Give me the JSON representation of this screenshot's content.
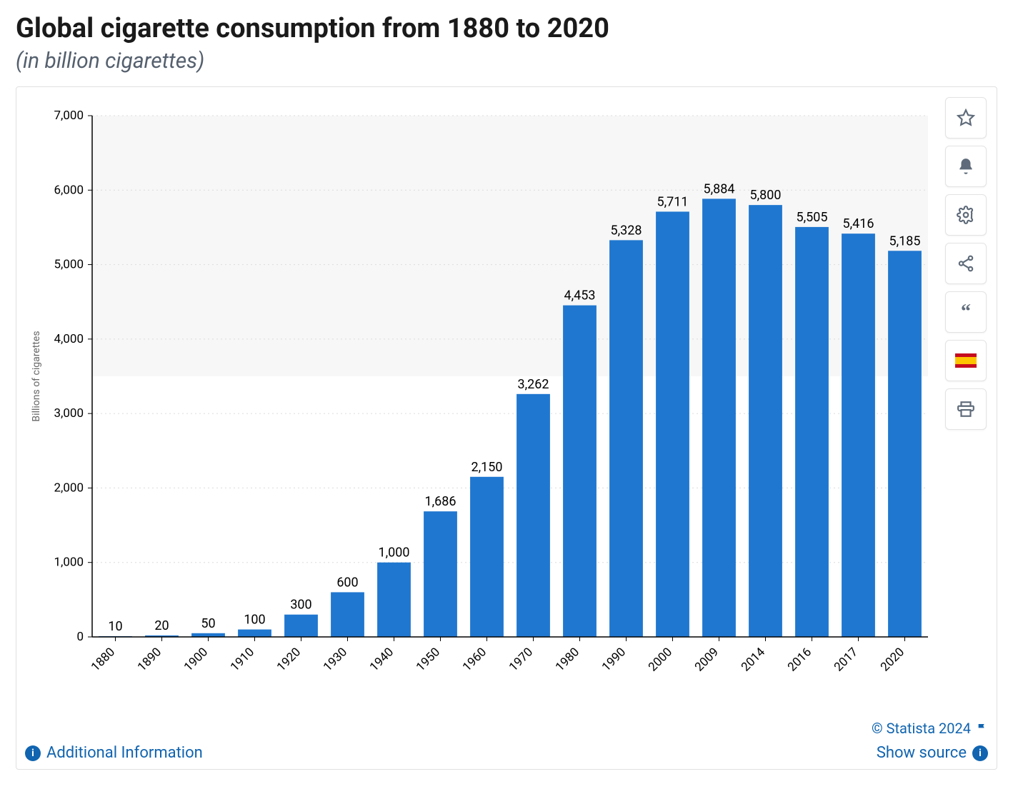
{
  "title": "Global cigarette consumption from 1880 to 2020",
  "subtitle": "(in billion cigarettes)",
  "chart": {
    "type": "bar",
    "categories": [
      "1880",
      "1890",
      "1900",
      "1910",
      "1920",
      "1930",
      "1940",
      "1950",
      "1960",
      "1970",
      "1980",
      "1990",
      "2000",
      "2009",
      "2014",
      "2016",
      "2017",
      "2020"
    ],
    "values": [
      10,
      20,
      50,
      100,
      300,
      600,
      1000,
      1686,
      2150,
      3262,
      4453,
      5328,
      5711,
      5884,
      5800,
      5505,
      5416,
      5185
    ],
    "value_labels": [
      "10",
      "20",
      "50",
      "100",
      "300",
      "600",
      "1,000",
      "1,686",
      "2,150",
      "3,262",
      "4,453",
      "5,328",
      "5,711",
      "5,884",
      "5,800",
      "5,505",
      "5,416",
      "5,185"
    ],
    "bar_color": "#1f77d0",
    "ylabel": "Billions of cigarettes",
    "ylim": [
      0,
      7000
    ],
    "ytick_step": 1000,
    "ytick_labels": [
      "0",
      "1,000",
      "2,000",
      "3,000",
      "4,000",
      "5,000",
      "6,000",
      "7,000"
    ],
    "grid_color": "#dcdcdc",
    "axis_color": "#000000",
    "value_label_color": "#000000",
    "tick_label_color": "#000000",
    "ylabel_color": "#666666",
    "background_color": "#ffffff",
    "plot_alt_bg": "#f7f7f7",
    "bar_width_ratio": 0.72,
    "value_label_fontsize": 18,
    "tick_label_fontsize": 17,
    "ylabel_fontsize": 14
  },
  "toolbar": {
    "items": [
      {
        "name": "star-icon",
        "label": "Favorite"
      },
      {
        "name": "bell-icon",
        "label": "Alert"
      },
      {
        "name": "gear-icon",
        "label": "Settings"
      },
      {
        "name": "share-icon",
        "label": "Share"
      },
      {
        "name": "quote-icon",
        "label": "Cite"
      },
      {
        "name": "flag-es-icon",
        "label": "Spanish"
      },
      {
        "name": "print-icon",
        "label": "Print"
      }
    ]
  },
  "footer": {
    "additional_info": "Additional Information",
    "copyright": "© Statista 2024",
    "show_source": "Show source"
  }
}
